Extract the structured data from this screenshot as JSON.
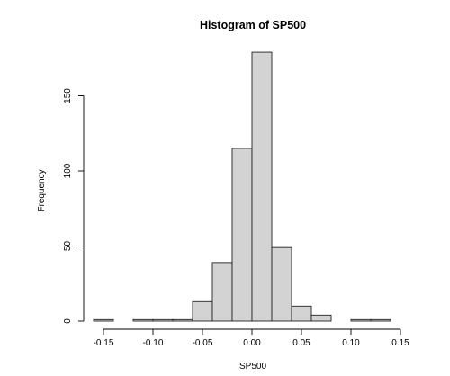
{
  "chart_data": {
    "type": "bar",
    "title": "Histogram of SP500",
    "xlabel": "SP500",
    "ylabel": "Frequency",
    "xlim": [
      -0.16,
      0.15
    ],
    "ylim": [
      0,
      180
    ],
    "bin_width": 0.02,
    "x_ticks": [
      -0.15,
      -0.1,
      -0.05,
      0.0,
      0.05,
      0.1,
      0.15
    ],
    "x_tick_labels": [
      "-0.15",
      "-0.10",
      "-0.05",
      "0.00",
      "0.05",
      "0.10",
      "0.15"
    ],
    "y_ticks": [
      0,
      50,
      100,
      150
    ],
    "y_tick_labels": [
      "0",
      "50",
      "100",
      "150"
    ],
    "bins": [
      {
        "start": -0.16,
        "end": -0.14,
        "count": 1
      },
      {
        "start": -0.14,
        "end": -0.12,
        "count": 0
      },
      {
        "start": -0.12,
        "end": -0.1,
        "count": 1
      },
      {
        "start": -0.1,
        "end": -0.08,
        "count": 1
      },
      {
        "start": -0.08,
        "end": -0.06,
        "count": 1
      },
      {
        "start": -0.06,
        "end": -0.04,
        "count": 13
      },
      {
        "start": -0.04,
        "end": -0.02,
        "count": 39
      },
      {
        "start": -0.02,
        "end": 0.0,
        "count": 115
      },
      {
        "start": 0.0,
        "end": 0.02,
        "count": 179
      },
      {
        "start": 0.02,
        "end": 0.04,
        "count": 49
      },
      {
        "start": 0.04,
        "end": 0.06,
        "count": 10
      },
      {
        "start": 0.06,
        "end": 0.08,
        "count": 4
      },
      {
        "start": 0.08,
        "end": 0.1,
        "count": 0
      },
      {
        "start": 0.1,
        "end": 0.12,
        "count": 1
      },
      {
        "start": 0.12,
        "end": 0.14,
        "count": 1
      }
    ],
    "colors": {
      "bar_fill": "#d3d3d3",
      "bar_stroke": "#222222",
      "axis": "#000000"
    }
  }
}
